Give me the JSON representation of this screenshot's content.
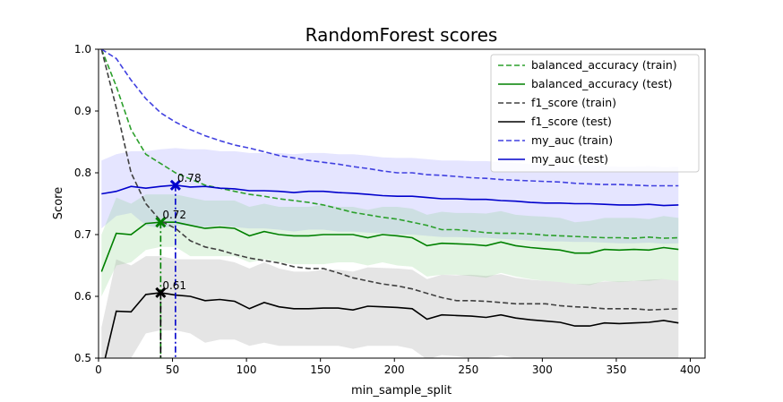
{
  "chart_data": {
    "type": "line",
    "title": "RandomForest scores",
    "xlabel": "min_sample_split",
    "ylabel": "Score",
    "xlim": [
      0,
      410
    ],
    "ylim": [
      0.5,
      1.0
    ],
    "xticks": [
      0,
      50,
      100,
      150,
      200,
      250,
      300,
      350,
      400
    ],
    "yticks": [
      0.5,
      0.6,
      0.7,
      0.8,
      0.9,
      1.0
    ],
    "xtick_labels": [
      "0",
      "50",
      "100",
      "150",
      "200",
      "250",
      "300",
      "350",
      "400"
    ],
    "ytick_labels": [
      "0.5",
      "0.6",
      "0.7",
      "0.8",
      "0.9",
      "1.0"
    ],
    "grid": false,
    "legend_position": "top-right",
    "x": [
      2,
      12,
      22,
      32,
      42,
      52,
      62,
      72,
      82,
      92,
      102,
      112,
      122,
      132,
      142,
      152,
      162,
      172,
      182,
      192,
      202,
      212,
      222,
      232,
      242,
      252,
      262,
      272,
      282,
      292,
      302,
      312,
      322,
      332,
      342,
      352,
      362,
      372,
      382,
      392
    ],
    "series": [
      {
        "name": "balanced_accuracy (train)",
        "color": "#2ca02c",
        "dash": "dashed",
        "values": [
          1.0,
          0.94,
          0.87,
          0.83,
          0.815,
          0.8,
          0.79,
          0.78,
          0.775,
          0.77,
          0.765,
          0.762,
          0.758,
          0.755,
          0.752,
          0.748,
          0.742,
          0.736,
          0.732,
          0.728,
          0.725,
          0.72,
          0.715,
          0.708,
          0.708,
          0.706,
          0.703,
          0.702,
          0.702,
          0.701,
          0.699,
          0.698,
          0.697,
          0.696,
          0.695,
          0.695,
          0.694,
          0.696,
          0.694,
          0.695
        ]
      },
      {
        "name": "balanced_accuracy (test)",
        "color": "#008000",
        "dash": "solid",
        "values": [
          0.64,
          0.702,
          0.7,
          0.718,
          0.72,
          0.72,
          0.715,
          0.71,
          0.712,
          0.71,
          0.698,
          0.705,
          0.7,
          0.698,
          0.698,
          0.7,
          0.7,
          0.7,
          0.695,
          0.7,
          0.698,
          0.695,
          0.682,
          0.686,
          0.685,
          0.684,
          0.682,
          0.688,
          0.682,
          0.679,
          0.677,
          0.675,
          0.67,
          0.67,
          0.676,
          0.675,
          0.676,
          0.675,
          0.679,
          0.676
        ]
      },
      {
        "name": "f1_score (train)",
        "color": "#404040",
        "dash": "dashed",
        "values": [
          1.0,
          0.905,
          0.8,
          0.75,
          0.722,
          0.71,
          0.69,
          0.68,
          0.675,
          0.668,
          0.662,
          0.658,
          0.654,
          0.648,
          0.645,
          0.645,
          0.638,
          0.63,
          0.625,
          0.62,
          0.617,
          0.612,
          0.605,
          0.598,
          0.593,
          0.593,
          0.592,
          0.59,
          0.588,
          0.588,
          0.588,
          0.585,
          0.583,
          0.582,
          0.58,
          0.58,
          0.58,
          0.578,
          0.579,
          0.58
        ]
      },
      {
        "name": "f1_score (test)",
        "color": "#000000",
        "dash": "solid",
        "values": [
          0.475,
          0.576,
          0.575,
          0.603,
          0.606,
          0.602,
          0.6,
          0.593,
          0.595,
          0.592,
          0.58,
          0.59,
          0.583,
          0.58,
          0.58,
          0.581,
          0.581,
          0.578,
          0.584,
          0.583,
          0.582,
          0.58,
          0.563,
          0.57,
          0.569,
          0.568,
          0.566,
          0.57,
          0.565,
          0.562,
          0.56,
          0.558,
          0.552,
          0.552,
          0.557,
          0.556,
          0.557,
          0.558,
          0.561,
          0.557
        ]
      },
      {
        "name": "my_auc (train)",
        "color": "#4040e0",
        "dash": "dashed",
        "values": [
          1.0,
          0.985,
          0.95,
          0.92,
          0.897,
          0.882,
          0.87,
          0.86,
          0.852,
          0.845,
          0.84,
          0.834,
          0.828,
          0.824,
          0.82,
          0.817,
          0.814,
          0.81,
          0.807,
          0.803,
          0.8,
          0.8,
          0.797,
          0.796,
          0.794,
          0.792,
          0.791,
          0.789,
          0.788,
          0.787,
          0.786,
          0.785,
          0.783,
          0.782,
          0.781,
          0.781,
          0.78,
          0.779,
          0.779,
          0.779
        ]
      },
      {
        "name": "my_auc (test)",
        "color": "#0000cc",
        "dash": "solid",
        "values": [
          0.766,
          0.77,
          0.778,
          0.775,
          0.778,
          0.78,
          0.777,
          0.778,
          0.775,
          0.774,
          0.771,
          0.771,
          0.77,
          0.768,
          0.77,
          0.77,
          0.768,
          0.767,
          0.765,
          0.763,
          0.762,
          0.762,
          0.76,
          0.758,
          0.758,
          0.757,
          0.757,
          0.755,
          0.754,
          0.752,
          0.751,
          0.751,
          0.75,
          0.75,
          0.749,
          0.748,
          0.748,
          0.749,
          0.747,
          0.748
        ]
      }
    ],
    "bands": [
      {
        "color": "#8888ff",
        "opacity": 0.22,
        "lower": [
          0.71,
          0.73,
          0.735,
          0.715,
          0.71,
          0.715,
          0.715,
          0.712,
          0.715,
          0.712,
          0.71,
          0.71,
          0.708,
          0.705,
          0.708,
          0.708,
          0.705,
          0.705,
          0.703,
          0.702,
          0.7,
          0.7,
          0.698,
          0.696,
          0.696,
          0.695,
          0.695,
          0.693,
          0.692,
          0.69,
          0.689,
          0.689,
          0.688,
          0.688,
          0.687,
          0.686,
          0.686,
          0.687,
          0.685,
          0.686
        ],
        "upper": [
          0.82,
          0.83,
          0.835,
          0.835,
          0.838,
          0.84,
          0.838,
          0.838,
          0.835,
          0.835,
          0.832,
          0.832,
          0.832,
          0.83,
          0.832,
          0.832,
          0.83,
          0.83,
          0.828,
          0.825,
          0.824,
          0.824,
          0.822,
          0.82,
          0.82,
          0.819,
          0.819,
          0.817,
          0.816,
          0.814,
          0.813,
          0.813,
          0.812,
          0.812,
          0.811,
          0.81,
          0.81,
          0.811,
          0.809,
          0.81
        ]
      },
      {
        "color": "#7ccc7c",
        "opacity": 0.22,
        "lower": [
          0.6,
          0.65,
          0.655,
          0.675,
          0.68,
          0.68,
          0.665,
          0.665,
          0.665,
          0.665,
          0.655,
          0.66,
          0.655,
          0.652,
          0.652,
          0.652,
          0.655,
          0.655,
          0.65,
          0.655,
          0.65,
          0.648,
          0.632,
          0.635,
          0.635,
          0.633,
          0.63,
          0.638,
          0.632,
          0.628,
          0.625,
          0.623,
          0.62,
          0.618,
          0.625,
          0.623,
          0.625,
          0.625,
          0.628,
          0.625
        ],
        "upper": [
          0.7,
          0.76,
          0.75,
          0.765,
          0.765,
          0.765,
          0.76,
          0.755,
          0.755,
          0.755,
          0.745,
          0.75,
          0.745,
          0.745,
          0.745,
          0.748,
          0.745,
          0.745,
          0.74,
          0.745,
          0.745,
          0.742,
          0.732,
          0.737,
          0.735,
          0.735,
          0.734,
          0.738,
          0.732,
          0.73,
          0.729,
          0.727,
          0.72,
          0.722,
          0.727,
          0.727,
          0.727,
          0.725,
          0.73,
          0.727
        ]
      },
      {
        "color": "#999999",
        "opacity": 0.25,
        "lower": [
          0.4,
          0.44,
          0.5,
          0.54,
          0.545,
          0.545,
          0.54,
          0.525,
          0.53,
          0.53,
          0.52,
          0.525,
          0.52,
          0.52,
          0.52,
          0.52,
          0.52,
          0.515,
          0.52,
          0.52,
          0.52,
          0.515,
          0.498,
          0.505,
          0.503,
          0.5,
          0.5,
          0.505,
          0.5,
          0.498,
          0.495,
          0.492,
          0.485,
          0.485,
          0.49,
          0.488,
          0.49,
          0.49,
          0.495,
          0.49
        ],
        "upper": [
          0.55,
          0.66,
          0.65,
          0.665,
          0.665,
          0.66,
          0.66,
          0.66,
          0.66,
          0.655,
          0.645,
          0.655,
          0.645,
          0.64,
          0.64,
          0.643,
          0.643,
          0.64,
          0.647,
          0.646,
          0.645,
          0.643,
          0.628,
          0.635,
          0.634,
          0.635,
          0.633,
          0.636,
          0.63,
          0.627,
          0.625,
          0.623,
          0.62,
          0.62,
          0.624,
          0.624,
          0.625,
          0.627,
          0.628,
          0.625
        ]
      }
    ],
    "best_markers": [
      {
        "series": "my_auc (test)",
        "x": 52,
        "y": 0.78,
        "label": "0.78",
        "color": "#0000cc"
      },
      {
        "series": "balanced_accuracy (test)",
        "x": 42,
        "y": 0.72,
        "label": "0.72",
        "color": "#008000"
      },
      {
        "series": "f1_score (test)",
        "x": 42,
        "y": 0.606,
        "label": "0.61",
        "color": "#000000"
      }
    ]
  }
}
